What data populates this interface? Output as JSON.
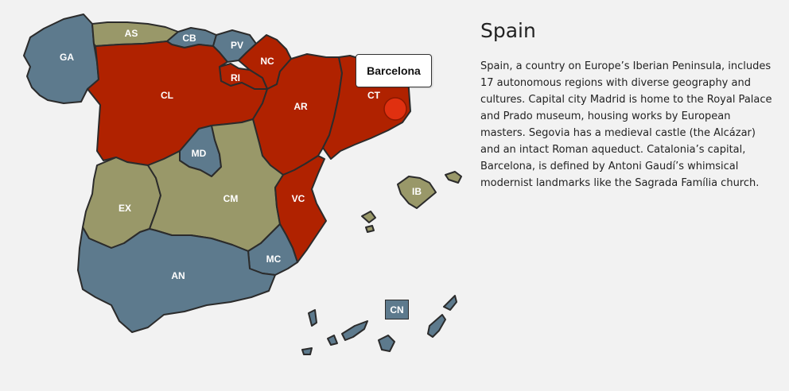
{
  "colors": {
    "blue": "#5d7a8d",
    "olive": "#999869",
    "red": "#b02200",
    "marker": "#e03010",
    "background": "#f2f2f2"
  },
  "regions": {
    "GA": {
      "label": "GA",
      "color": "blue"
    },
    "AS": {
      "label": "AS",
      "color": "olive"
    },
    "CB": {
      "label": "CB",
      "color": "blue"
    },
    "PV": {
      "label": "PV",
      "color": "blue"
    },
    "NC": {
      "label": "NC",
      "color": "red"
    },
    "RI": {
      "label": "RI",
      "color": "red"
    },
    "CL": {
      "label": "CL",
      "color": "red"
    },
    "AR": {
      "label": "AR",
      "color": "red"
    },
    "CT": {
      "label": "CT",
      "color": "red"
    },
    "MD": {
      "label": "MD",
      "color": "blue"
    },
    "EX": {
      "label": "EX",
      "color": "olive"
    },
    "CM": {
      "label": "CM",
      "color": "olive"
    },
    "VC": {
      "label": "VC",
      "color": "red"
    },
    "MC": {
      "label": "MC",
      "color": "blue"
    },
    "AN": {
      "label": "AN",
      "color": "blue"
    },
    "IB": {
      "label": "IB",
      "color": "olive"
    },
    "CN": {
      "label": "CN",
      "color": "blue"
    }
  },
  "tooltip": {
    "label": "Barcelona"
  },
  "info": {
    "title": "Spain",
    "description": "Spain, a country on Europe’s Iberian Peninsula, includes 17 autonomous regions with diverse geography and cultures. Capital city Madrid is home to the Royal Palace and Prado museum, housing works by European masters. Segovia has a medieval castle (the Alcázar) and an intact Roman aqueduct. Catalonia’s capital, Barcelona, is defined by Antoni Gaudí’s whimsical modernist landmarks like the Sagrada Família church."
  }
}
